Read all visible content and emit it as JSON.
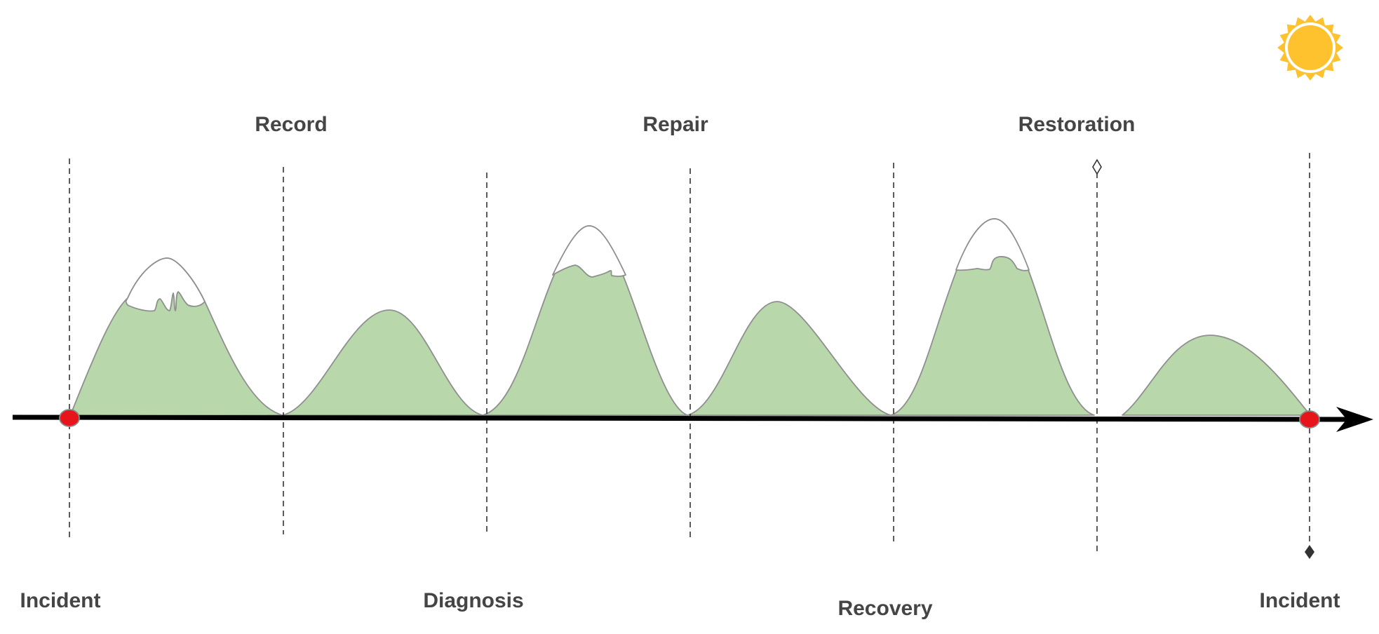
{
  "labels": {
    "top": [
      "Record",
      "Repair",
      "Restoration"
    ],
    "bottom": [
      "Incident",
      "Diagnosis",
      "Recovery",
      "Incident"
    ]
  },
  "colors": {
    "hill_fill": "#b8d7ab",
    "snow_fill": "#ffffff",
    "outline": "#8f8f8f",
    "timeline": "#000000",
    "marker": "#e8141c",
    "sun": "#fdc22d",
    "label_text": "#454545"
  },
  "icons": {
    "sun": "sun-icon",
    "diamond_marker": "diamond-icon"
  }
}
